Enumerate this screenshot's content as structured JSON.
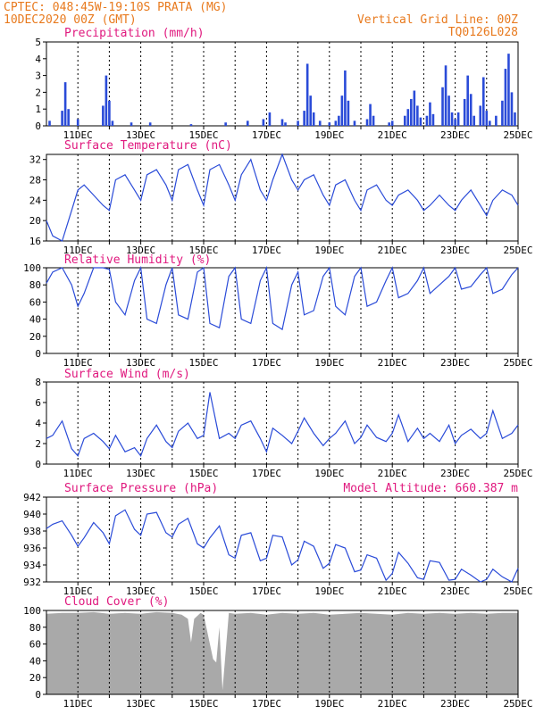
{
  "header": {
    "line1": "CPTEC:   048:45W-19:10S   PRATA (MG)",
    "line2": "10DEC2020 00Z (GMT)",
    "grid_note": "Vertical Grid Line: 00Z",
    "run_id": "TQ0126L028"
  },
  "colors": {
    "header": "#e87a1e",
    "title": "#e0187e",
    "line": "#2a4bd8",
    "bars": "#2a4bd8",
    "cloud": "#a9a9a9"
  },
  "x_axis": {
    "start_day": 10,
    "end_day": 25,
    "tick_labels": [
      "11DEC",
      "13DEC",
      "15DEC",
      "17DEC",
      "19DEC",
      "21DEC",
      "23DEC",
      "25DEC"
    ],
    "tick_days": [
      11,
      13,
      15,
      17,
      19,
      21,
      23,
      25
    ],
    "gridlines_at_days": [
      11,
      12,
      13,
      14,
      15,
      16,
      17,
      18,
      19,
      20,
      21,
      22,
      23,
      24,
      25
    ]
  },
  "chart_data": [
    {
      "type": "bar",
      "title": "Precipitation (mm/h)",
      "ylim": [
        0,
        5
      ],
      "yticks": [
        0,
        1,
        2,
        3,
        4,
        5
      ],
      "x": [
        10.1,
        10.5,
        10.6,
        10.7,
        11.0,
        11.8,
        11.9,
        12.0,
        12.1,
        12.7,
        13.3,
        14.6,
        15.7,
        16.4,
        16.9,
        17.1,
        17.5,
        17.6,
        18.0,
        18.2,
        18.3,
        18.4,
        18.5,
        18.7,
        19.0,
        19.2,
        19.3,
        19.4,
        19.5,
        19.6,
        19.8,
        20.2,
        20.3,
        20.4,
        20.9,
        21.0,
        21.4,
        21.5,
        21.6,
        21.7,
        21.8,
        21.9,
        22.1,
        22.2,
        22.3,
        22.6,
        22.7,
        22.8,
        22.9,
        23.0,
        23.1,
        23.3,
        23.4,
        23.5,
        23.6,
        23.8,
        23.9,
        24.0,
        24.1,
        24.3,
        24.5,
        24.6,
        24.7,
        24.8,
        24.9
      ],
      "values": [
        0.3,
        0.9,
        2.6,
        1.0,
        0.4,
        1.2,
        3.0,
        1.5,
        0.3,
        0.2,
        0.2,
        0.1,
        0.2,
        0.3,
        0.4,
        0.8,
        0.4,
        0.2,
        0.3,
        0.9,
        3.7,
        1.8,
        0.8,
        0.3,
        0.2,
        0.3,
        0.6,
        1.8,
        3.3,
        1.5,
        0.3,
        0.4,
        1.3,
        0.6,
        0.2,
        0.3,
        0.6,
        1.0,
        1.6,
        2.1,
        1.2,
        0.5,
        0.6,
        1.4,
        0.7,
        2.3,
        3.6,
        1.8,
        0.8,
        0.4,
        0.8,
        1.6,
        3.0,
        1.9,
        0.6,
        1.2,
        2.9,
        0.9,
        0.3,
        0.6,
        1.5,
        3.4,
        4.3,
        2.0,
        0.8
      ]
    },
    {
      "type": "line",
      "title": "Surface Temperature (nC)",
      "ylim": [
        16,
        33
      ],
      "yticks": [
        16,
        20,
        24,
        28,
        32
      ],
      "x": [
        10.0,
        10.2,
        10.5,
        10.8,
        11.0,
        11.2,
        11.5,
        11.8,
        12.0,
        12.2,
        12.5,
        12.8,
        13.0,
        13.2,
        13.5,
        13.8,
        14.0,
        14.2,
        14.5,
        14.8,
        15.0,
        15.2,
        15.5,
        15.8,
        16.0,
        16.2,
        16.5,
        16.8,
        17.0,
        17.2,
        17.5,
        17.8,
        18.0,
        18.2,
        18.5,
        18.8,
        19.0,
        19.2,
        19.5,
        19.8,
        20.0,
        20.2,
        20.5,
        20.8,
        21.0,
        21.2,
        21.5,
        21.8,
        22.0,
        22.2,
        22.5,
        22.8,
        23.0,
        23.2,
        23.5,
        23.8,
        24.0,
        24.2,
        24.5,
        24.8,
        25.0
      ],
      "values": [
        20,
        17,
        16,
        22,
        26,
        27,
        25,
        23,
        22,
        28,
        29,
        26,
        24,
        29,
        30,
        27,
        24,
        30,
        31,
        26,
        23,
        30,
        31,
        27,
        24,
        29,
        32,
        26,
        24,
        28,
        33,
        28,
        26,
        28,
        29,
        25,
        23,
        27,
        28,
        24,
        22,
        26,
        27,
        24,
        23,
        25,
        26,
        24,
        22,
        23,
        25,
        23,
        22,
        24,
        26,
        23,
        21,
        24,
        26,
        25,
        23
      ]
    },
    {
      "type": "line",
      "title": "Relative Humidity (%)",
      "ylim": [
        0,
        100
      ],
      "yticks": [
        0,
        20,
        40,
        60,
        80,
        100
      ],
      "x": [
        10.0,
        10.2,
        10.5,
        10.8,
        11.0,
        11.2,
        11.5,
        11.8,
        12.0,
        12.2,
        12.5,
        12.8,
        13.0,
        13.2,
        13.5,
        13.8,
        14.0,
        14.2,
        14.5,
        14.8,
        15.0,
        15.2,
        15.5,
        15.8,
        16.0,
        16.2,
        16.5,
        16.8,
        17.0,
        17.2,
        17.5,
        17.8,
        18.0,
        18.2,
        18.5,
        18.8,
        19.0,
        19.2,
        19.5,
        19.8,
        20.0,
        20.2,
        20.5,
        20.8,
        21.0,
        21.2,
        21.5,
        21.8,
        22.0,
        22.2,
        22.5,
        22.8,
        23.0,
        23.2,
        23.5,
        23.8,
        24.0,
        24.2,
        24.5,
        24.8,
        25.0
      ],
      "values": [
        82,
        95,
        100,
        80,
        55,
        70,
        100,
        100,
        98,
        60,
        45,
        85,
        100,
        40,
        35,
        80,
        100,
        45,
        40,
        95,
        100,
        35,
        30,
        90,
        100,
        40,
        35,
        85,
        100,
        35,
        28,
        80,
        95,
        45,
        50,
        90,
        100,
        55,
        45,
        90,
        100,
        55,
        60,
        85,
        100,
        65,
        70,
        85,
        100,
        70,
        80,
        90,
        100,
        75,
        78,
        92,
        100,
        70,
        75,
        92,
        100
      ]
    },
    {
      "type": "line",
      "title": "Surface Wind (m/s)",
      "ylim": [
        0,
        8
      ],
      "yticks": [
        0,
        2,
        4,
        6,
        8
      ],
      "x": [
        10.0,
        10.2,
        10.5,
        10.8,
        11.0,
        11.2,
        11.5,
        11.8,
        12.0,
        12.2,
        12.5,
        12.8,
        13.0,
        13.2,
        13.5,
        13.8,
        14.0,
        14.2,
        14.5,
        14.8,
        15.0,
        15.2,
        15.5,
        15.8,
        16.0,
        16.2,
        16.5,
        16.8,
        17.0,
        17.2,
        17.5,
        17.8,
        18.0,
        18.2,
        18.5,
        18.8,
        19.0,
        19.2,
        19.5,
        19.8,
        20.0,
        20.2,
        20.5,
        20.8,
        21.0,
        21.2,
        21.5,
        21.8,
        22.0,
        22.2,
        22.5,
        22.8,
        23.0,
        23.2,
        23.5,
        23.8,
        24.0,
        24.2,
        24.5,
        24.8,
        25.0
      ],
      "values": [
        2.5,
        2.8,
        4.2,
        1.5,
        0.8,
        2.5,
        3.0,
        2.2,
        1.5,
        2.8,
        1.2,
        1.6,
        0.8,
        2.5,
        3.8,
        2.2,
        1.6,
        3.2,
        4.0,
        2.5,
        2.8,
        7.0,
        2.5,
        3.0,
        2.5,
        3.8,
        4.2,
        2.5,
        1.2,
        3.5,
        2.8,
        2.0,
        3.2,
        4.5,
        3.0,
        1.8,
        2.5,
        3.0,
        4.2,
        2.0,
        2.6,
        3.8,
        2.6,
        2.2,
        3.0,
        4.8,
        2.2,
        3.5,
        2.5,
        3.0,
        2.2,
        3.8,
        2.0,
        2.8,
        3.4,
        2.5,
        3.0,
        5.2,
        2.5,
        3.0,
        3.8
      ]
    },
    {
      "type": "line",
      "title": "Surface Pressure (hPa)",
      "ylim": [
        932,
        942
      ],
      "yticks": [
        932,
        934,
        936,
        938,
        940,
        942
      ],
      "x": [
        10.0,
        10.2,
        10.5,
        10.8,
        11.0,
        11.2,
        11.5,
        11.8,
        12.0,
        12.2,
        12.5,
        12.8,
        13.0,
        13.2,
        13.5,
        13.8,
        14.0,
        14.2,
        14.5,
        14.8,
        15.0,
        15.2,
        15.5,
        15.8,
        16.0,
        16.2,
        16.5,
        16.8,
        17.0,
        17.2,
        17.5,
        17.8,
        18.0,
        18.2,
        18.5,
        18.8,
        19.0,
        19.2,
        19.5,
        19.8,
        20.0,
        20.2,
        20.5,
        20.8,
        21.0,
        21.2,
        21.5,
        21.8,
        22.0,
        22.2,
        22.5,
        22.8,
        23.0,
        23.2,
        23.5,
        23.8,
        24.0,
        24.2,
        24.5,
        24.8,
        25.0
      ],
      "values": [
        938.3,
        938.8,
        939.2,
        937.5,
        936.2,
        937.2,
        939.0,
        937.8,
        936.5,
        939.8,
        940.5,
        938.2,
        937.5,
        940.0,
        940.2,
        937.8,
        937.3,
        938.8,
        939.5,
        936.5,
        936.0,
        937.2,
        938.6,
        935.2,
        934.8,
        937.5,
        937.8,
        934.5,
        934.8,
        937.5,
        937.3,
        934.0,
        934.6,
        936.8,
        936.2,
        933.6,
        934.2,
        936.4,
        936.0,
        933.2,
        933.4,
        935.2,
        934.8,
        932.2,
        933.0,
        935.5,
        934.2,
        932.5,
        932.3,
        934.5,
        934.3,
        932.2,
        932.3,
        933.5,
        932.8,
        932.0,
        932.3,
        933.5,
        932.6,
        932.0,
        933.6
      ]
    },
    {
      "type": "area",
      "title": "Cloud Cover (%)",
      "ylim": [
        0,
        100
      ],
      "yticks": [
        0,
        20,
        40,
        60,
        80,
        100
      ],
      "x": [
        10.0,
        10.5,
        11.0,
        11.5,
        12.0,
        12.5,
        13.0,
        13.5,
        14.0,
        14.3,
        14.5,
        14.6,
        14.7,
        14.9,
        15.0,
        15.2,
        15.3,
        15.4,
        15.5,
        15.6,
        15.8,
        16.0,
        16.5,
        17.0,
        17.5,
        18.0,
        18.5,
        19.0,
        19.5,
        20.0,
        20.5,
        21.0,
        21.5,
        22.0,
        22.5,
        23.0,
        23.5,
        24.0,
        24.5,
        25.0
      ],
      "values": [
        96,
        97,
        97,
        98,
        96,
        97,
        96,
        98,
        97,
        95,
        90,
        62,
        90,
        97,
        95,
        60,
        42,
        38,
        80,
        5,
        97,
        96,
        97,
        95,
        97,
        96,
        97,
        95,
        96,
        97,
        96,
        95,
        97,
        96,
        97,
        96,
        97,
        96,
        97,
        97
      ]
    }
  ],
  "pressure_note": "Model Altitude: 660.387 m"
}
